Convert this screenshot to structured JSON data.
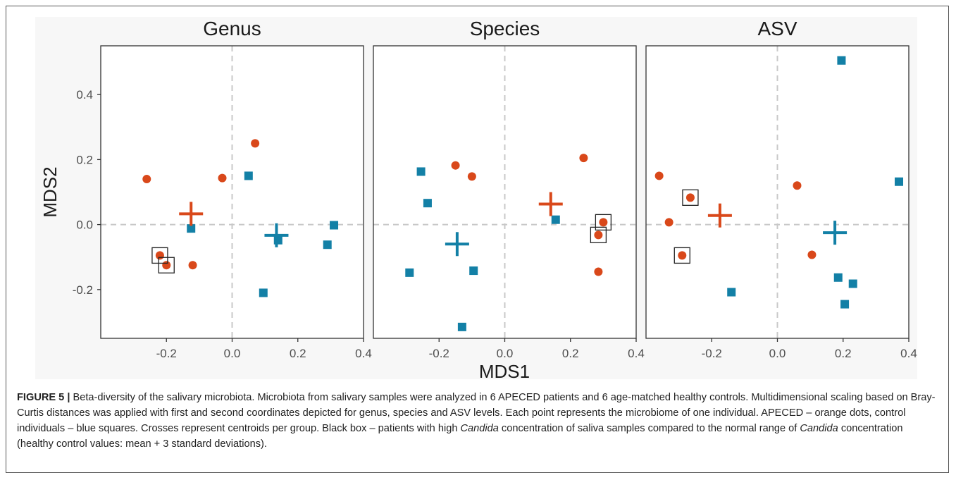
{
  "chart_data": {
    "type": "scatter",
    "xlabel": "MDS1",
    "ylabel": "MDS2",
    "xlim": [
      -0.4,
      0.4
    ],
    "ylim": [
      -0.35,
      0.55
    ],
    "xticks": [
      -0.2,
      0.0,
      0.2,
      0.4
    ],
    "xtick_labels": [
      "-0.2",
      "0.0",
      "0.2",
      "0.4"
    ],
    "yticks": [
      -0.2,
      0.0,
      0.2,
      0.4
    ],
    "ytick_labels": [
      "-0.2",
      "0.0",
      "0.2",
      "0.4"
    ],
    "colors": {
      "APECED": "#d9481a",
      "Control": "#1380a6"
    },
    "panels": [
      {
        "title": "Genus",
        "apeced": [
          [
            -0.26,
            0.14
          ],
          [
            -0.22,
            -0.095
          ],
          [
            -0.2,
            -0.125
          ],
          [
            -0.12,
            -0.125
          ],
          [
            -0.03,
            0.143
          ],
          [
            0.07,
            0.25
          ]
        ],
        "control": [
          [
            -0.125,
            -0.012
          ],
          [
            0.05,
            0.15
          ],
          [
            0.095,
            -0.21
          ],
          [
            0.14,
            -0.048
          ],
          [
            0.29,
            -0.062
          ],
          [
            0.31,
            -0.002
          ]
        ],
        "boxed_apeced": [
          1,
          2
        ],
        "centroid_apeced": [
          -0.125,
          0.033
        ],
        "centroid_control": [
          0.135,
          -0.033
        ]
      },
      {
        "title": "Species",
        "apeced": [
          [
            -0.15,
            0.182
          ],
          [
            -0.1,
            0.148
          ],
          [
            0.24,
            0.205
          ],
          [
            0.285,
            -0.145
          ],
          [
            0.285,
            -0.032
          ],
          [
            0.3,
            0.007
          ]
        ],
        "control": [
          [
            -0.29,
            -0.148
          ],
          [
            -0.255,
            0.163
          ],
          [
            -0.235,
            0.066
          ],
          [
            -0.13,
            -0.315
          ],
          [
            -0.095,
            -0.142
          ],
          [
            0.155,
            0.015
          ]
        ],
        "boxed_apeced": [
          4,
          5
        ],
        "centroid_apeced": [
          0.14,
          0.063
        ],
        "centroid_control": [
          -0.145,
          -0.06
        ]
      },
      {
        "title": "ASV",
        "apeced": [
          [
            -0.36,
            0.15
          ],
          [
            -0.33,
            0.007
          ],
          [
            -0.29,
            -0.095
          ],
          [
            -0.265,
            0.083
          ],
          [
            0.06,
            0.12
          ],
          [
            0.105,
            -0.093
          ]
        ],
        "control": [
          [
            -0.14,
            -0.208
          ],
          [
            0.185,
            -0.163
          ],
          [
            0.195,
            0.505
          ],
          [
            0.205,
            -0.245
          ],
          [
            0.23,
            -0.182
          ],
          [
            0.37,
            0.132
          ]
        ],
        "boxed_apeced": [
          2,
          3
        ],
        "centroid_apeced": [
          -0.175,
          0.028
        ],
        "centroid_control": [
          0.175,
          -0.025
        ]
      }
    ]
  },
  "caption": {
    "label": "FIGURE 5 |",
    "text_1": " Beta-diversity of the salivary microbiota. Microbiota from salivary samples were analyzed in 6 APECED patients and 6 age-matched healthy controls. Multidimensional scaling based on Bray-Curtis distances was applied with first and second coordinates depicted for genus, species and ASV levels. Each point represents the microbiome of one individual. APECED – orange dots, control individuals – blue squares. Crosses represent centroids per group. Black box – patients with high ",
    "italic_1": "Candida",
    "text_2": " concentration of saliva samples compared to the normal range of ",
    "italic_2": "Candida",
    "text_3": " concentration (healthy control values: mean + 3 standard deviations)."
  }
}
